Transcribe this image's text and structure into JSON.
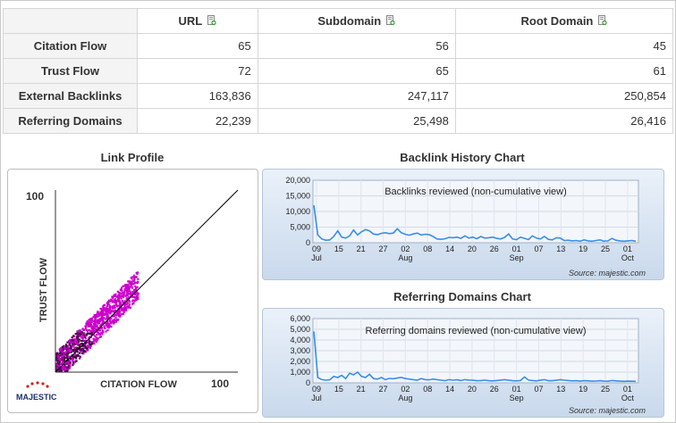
{
  "table": {
    "columns": [
      "URL",
      "Subdomain",
      "Root Domain"
    ],
    "rows": [
      {
        "label": "Citation Flow",
        "values": [
          "65",
          "56",
          "45"
        ]
      },
      {
        "label": "Trust Flow",
        "values": [
          "72",
          "65",
          "61"
        ]
      },
      {
        "label": "External Backlinks",
        "values": [
          "163,836",
          "247,117",
          "250,854"
        ]
      },
      {
        "label": "Referring Domains",
        "values": [
          "22,239",
          "25,498",
          "26,416"
        ]
      }
    ],
    "export_icon": "spreadsheet-export-icon"
  },
  "link_profile": {
    "title": "Link Profile",
    "y_label": "TRUST FLOW",
    "x_label": "CITATION FLOW",
    "y_max_label": "100",
    "x_max_label": "100",
    "logo_text": "MAJESTIC",
    "point_color": "#cc00cc"
  },
  "backlink_chart": {
    "title": "Backlink History Chart",
    "caption": "Backlinks reviewed (non-cumulative view)",
    "source": "Source: majestic.com"
  },
  "referring_chart": {
    "title": "Referring Domains Chart",
    "caption": "Referring domains reviewed (non-cumulative view)",
    "source": "Source: majestic.com"
  },
  "chart_data": [
    {
      "type": "line",
      "title": "Backlink History Chart",
      "subtitle": "Backlinks reviewed (non-cumulative view)",
      "line_color": "#3a8ee6",
      "ylim": [
        0,
        20000
      ],
      "y_ticks": [
        "0",
        "5,000",
        "10,000",
        "15,000",
        "20,000"
      ],
      "x_ticks": [
        {
          "day": "09",
          "month": "Jul"
        },
        {
          "day": "15",
          "month": ""
        },
        {
          "day": "21",
          "month": ""
        },
        {
          "day": "27",
          "month": ""
        },
        {
          "day": "02",
          "month": "Aug"
        },
        {
          "day": "08",
          "month": ""
        },
        {
          "day": "14",
          "month": ""
        },
        {
          "day": "20",
          "month": ""
        },
        {
          "day": "26",
          "month": ""
        },
        {
          "day": "01",
          "month": "Sep"
        },
        {
          "day": "07",
          "month": ""
        },
        {
          "day": "13",
          "month": ""
        },
        {
          "day": "19",
          "month": ""
        },
        {
          "day": "25",
          "month": ""
        },
        {
          "day": "01",
          "month": "Oct"
        }
      ],
      "values": [
        12000,
        2500,
        1200,
        800,
        900,
        2000,
        3800,
        1800,
        1500,
        2200,
        4100,
        2500,
        3500,
        4200,
        3800,
        2800,
        2600,
        3000,
        3200,
        2900,
        3100,
        4500,
        3200,
        2700,
        2400,
        2800,
        3100,
        2500,
        2700,
        2600,
        2000,
        1200,
        1100,
        1300,
        1700,
        1600,
        1800,
        1400,
        2200,
        1500,
        1800,
        1300,
        2000,
        1500,
        1600,
        1800,
        1400,
        1200,
        1700,
        2800,
        1200,
        1000,
        1800,
        1400,
        1000,
        2200,
        1500,
        1200,
        2000,
        1100,
        900,
        1600,
        1500,
        700,
        800,
        600,
        700,
        500,
        900,
        600,
        500,
        700,
        900,
        500,
        600,
        1400,
        800,
        600,
        500,
        600,
        700,
        500
      ]
    },
    {
      "type": "line",
      "title": "Referring Domains Chart",
      "subtitle": "Referring domains reviewed (non-cumulative view)",
      "line_color": "#3a8ee6",
      "ylim": [
        0,
        6000
      ],
      "y_ticks": [
        "0",
        "1,000",
        "2,000",
        "3,000",
        "4,000",
        "5,000",
        "6,000"
      ],
      "x_ticks": [
        {
          "day": "09",
          "month": "Jul"
        },
        {
          "day": "15",
          "month": ""
        },
        {
          "day": "21",
          "month": ""
        },
        {
          "day": "27",
          "month": ""
        },
        {
          "day": "02",
          "month": "Aug"
        },
        {
          "day": "08",
          "month": ""
        },
        {
          "day": "14",
          "month": ""
        },
        {
          "day": "20",
          "month": ""
        },
        {
          "day": "26",
          "month": ""
        },
        {
          "day": "01",
          "month": "Sep"
        },
        {
          "day": "07",
          "month": ""
        },
        {
          "day": "13",
          "month": ""
        },
        {
          "day": "19",
          "month": ""
        },
        {
          "day": "25",
          "month": ""
        },
        {
          "day": "01",
          "month": "Oct"
        }
      ],
      "values": [
        4800,
        500,
        300,
        250,
        280,
        600,
        500,
        700,
        400,
        900,
        750,
        1000,
        600,
        500,
        800,
        400,
        350,
        500,
        300,
        420,
        380,
        450,
        500,
        400,
        350,
        300,
        250,
        400,
        300,
        280,
        350,
        300,
        250,
        200,
        300,
        250,
        280,
        220,
        300,
        260,
        240,
        200,
        220,
        250,
        200,
        180,
        220,
        260,
        300,
        240,
        200,
        180,
        220,
        550,
        260,
        220,
        180,
        240,
        300,
        200,
        200,
        240,
        300,
        250,
        220,
        180,
        200,
        160,
        200,
        180,
        160,
        170,
        200,
        160,
        150,
        220,
        180,
        160,
        140,
        160,
        150,
        140
      ]
    },
    {
      "type": "heatmap",
      "title": "Link Profile",
      "xlabel": "CITATION FLOW",
      "ylabel": "TRUST FLOW",
      "xlim": [
        0,
        100
      ],
      "ylim": [
        0,
        100
      ],
      "diagonal_reference_line": true
    }
  ]
}
